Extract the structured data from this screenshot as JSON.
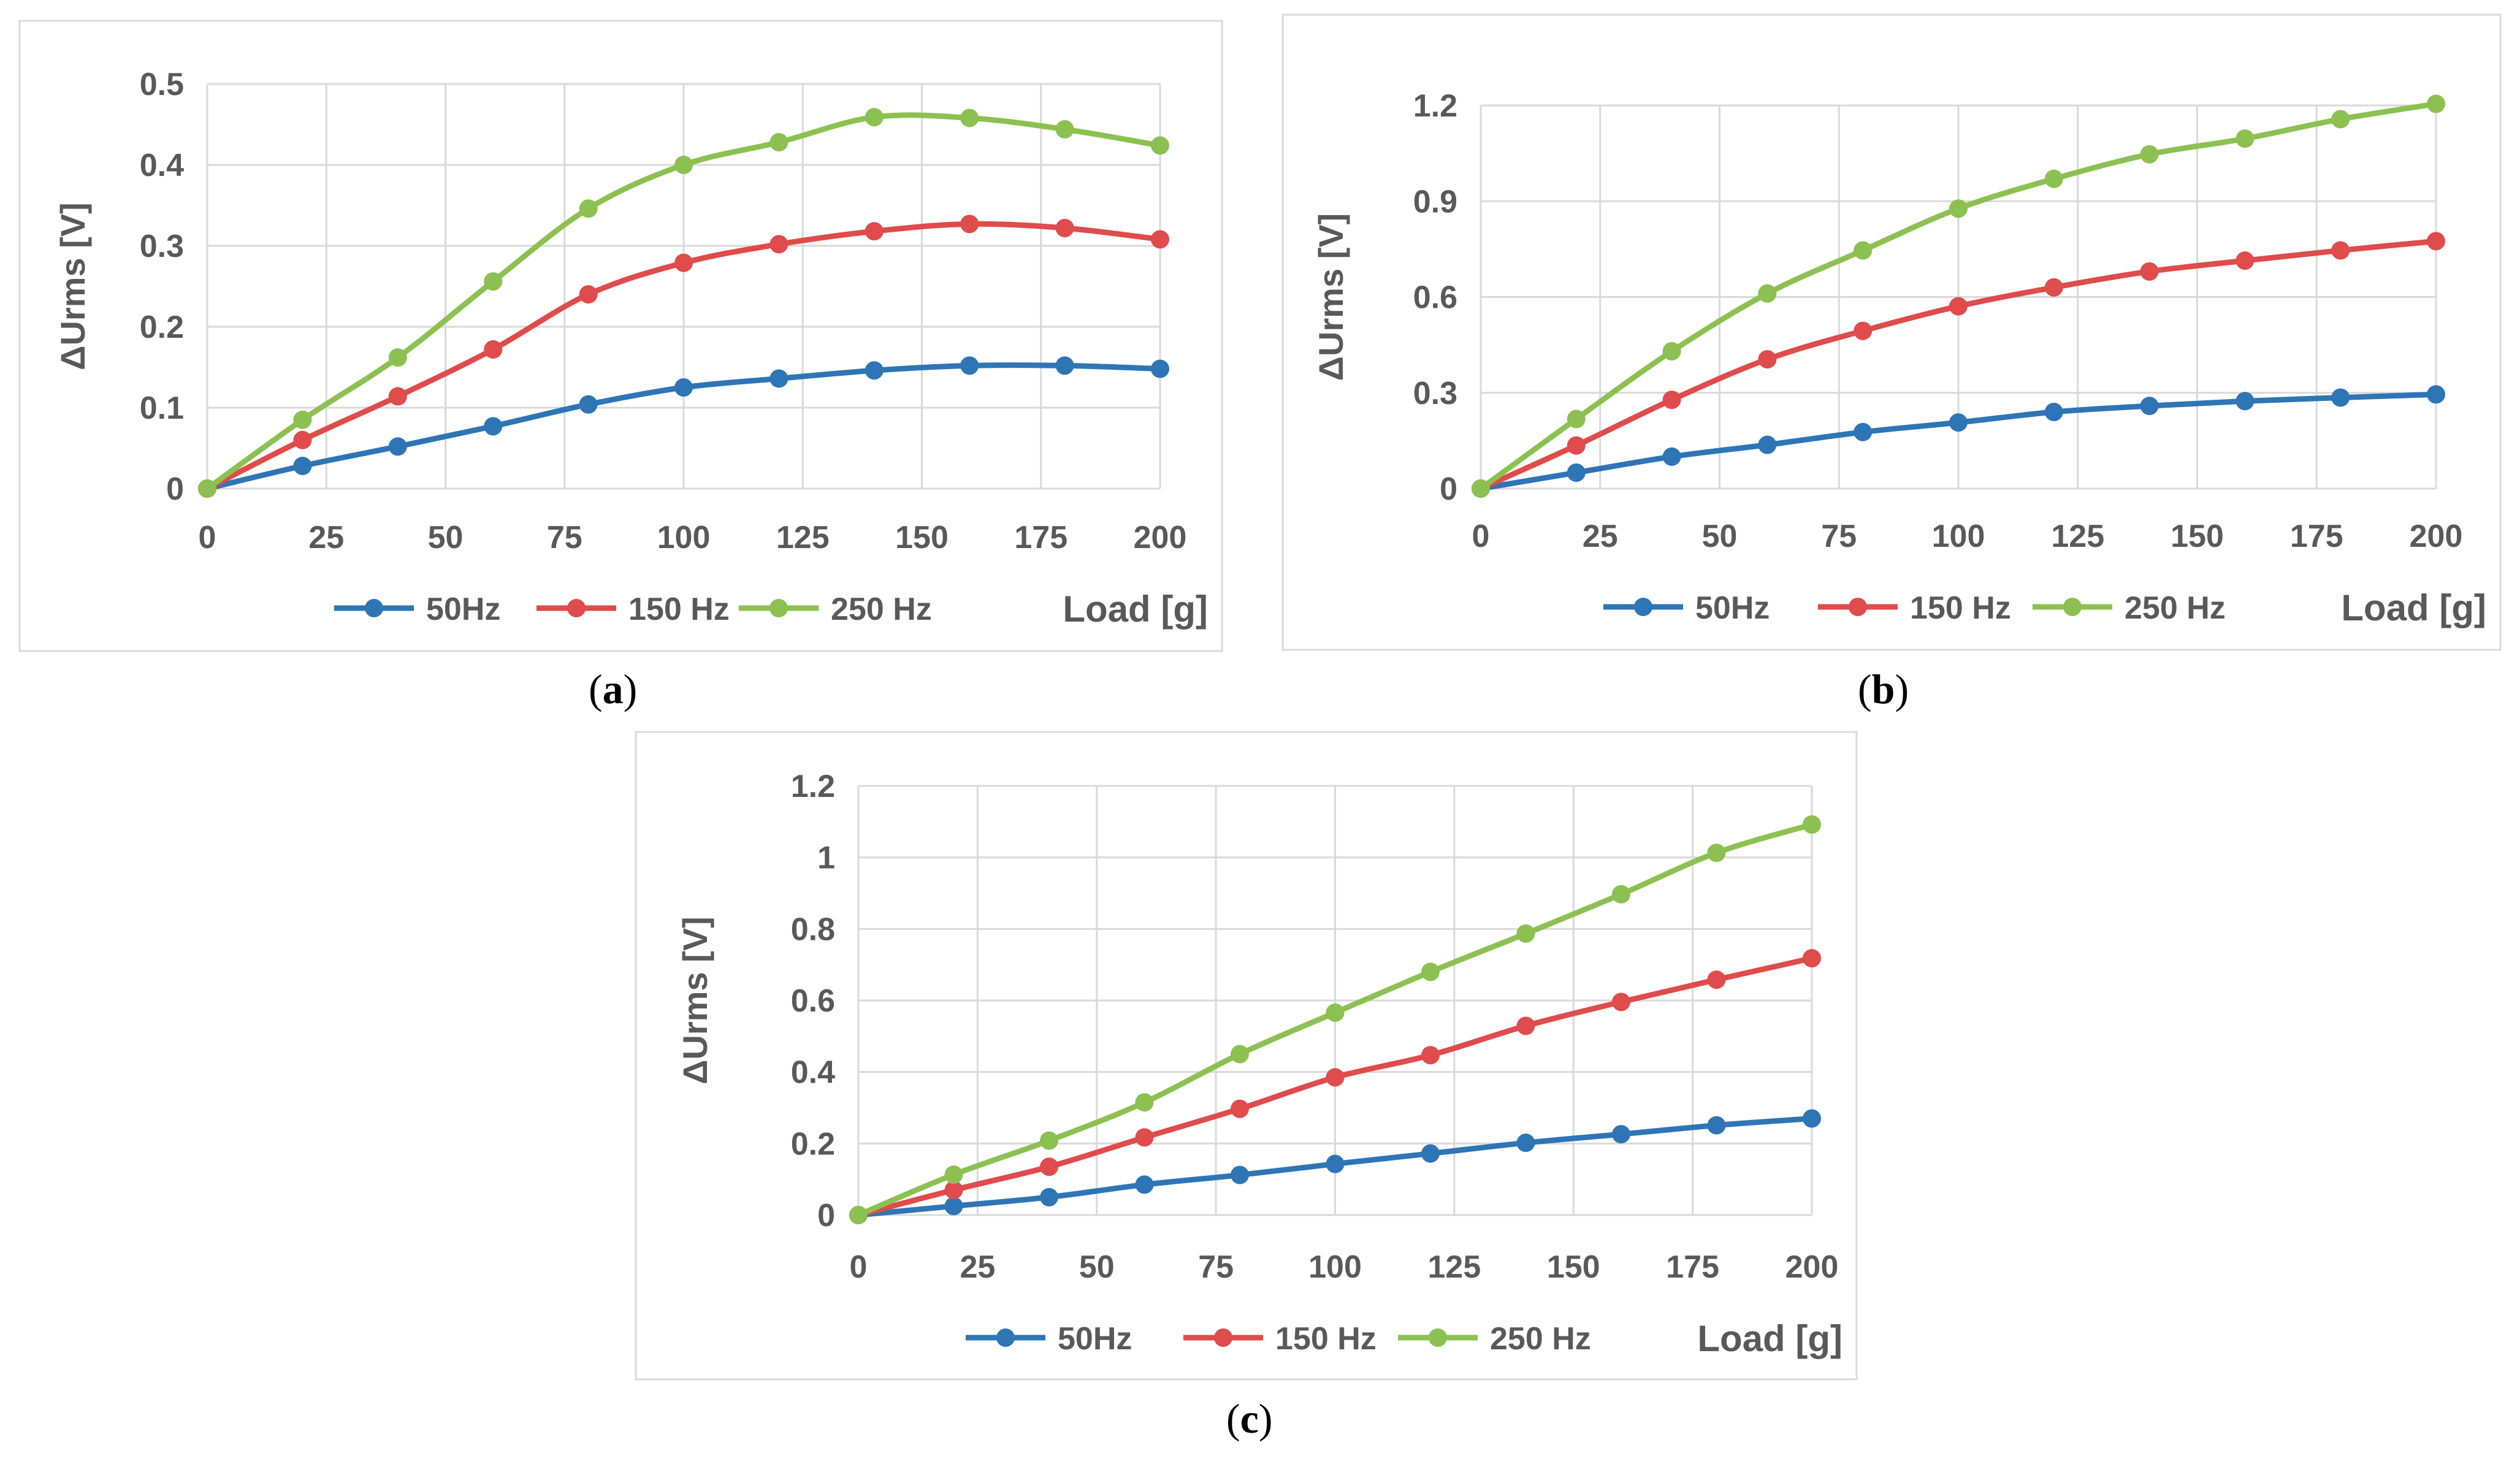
{
  "colors": {
    "50Hz": "#2e75b6",
    "150 Hz": "#e04b4b",
    "250 Hz": "#8cc152"
  },
  "chart_data": [
    {
      "type": "line",
      "caption": "a",
      "ylabel": "ΔUrms [V]",
      "xlabel": "Load [g]",
      "xlim": [
        0,
        200
      ],
      "ylim": [
        0,
        0.5
      ],
      "xticks": [
        0,
        25,
        50,
        75,
        100,
        125,
        150,
        175,
        200
      ],
      "yticks": [
        0,
        0.1,
        0.2,
        0.3,
        0.4,
        0.5
      ],
      "ytick_labels": [
        "0",
        "0.1",
        "0.2",
        "0.3",
        "0.4",
        "0.5"
      ],
      "grid": true,
      "legend": "bottom",
      "x": [
        0,
        20,
        40,
        60,
        80,
        100,
        120,
        140,
        160,
        180,
        200
      ],
      "series": [
        {
          "name": "50Hz",
          "values": [
            0,
            0.028,
            0.052,
            0.077,
            0.104,
            0.125,
            0.136,
            0.146,
            0.152,
            0.152,
            0.148
          ]
        },
        {
          "name": "150 Hz",
          "values": [
            0,
            0.06,
            0.114,
            0.172,
            0.24,
            0.279,
            0.302,
            0.318,
            0.327,
            0.322,
            0.308
          ]
        },
        {
          "name": "250 Hz",
          "values": [
            0,
            0.085,
            0.162,
            0.256,
            0.346,
            0.4,
            0.428,
            0.459,
            0.458,
            0.444,
            0.424
          ]
        }
      ]
    },
    {
      "type": "line",
      "caption": "b",
      "ylabel": "ΔUrms [V]",
      "xlabel": "Load [g]",
      "xlim": [
        0,
        200
      ],
      "ylim": [
        0,
        1.2
      ],
      "xticks": [
        0,
        25,
        50,
        75,
        100,
        125,
        150,
        175,
        200
      ],
      "yticks": [
        0,
        0.3,
        0.6,
        0.9,
        1.2
      ],
      "ytick_labels": [
        "0",
        "0.3",
        "0.6",
        "0.9",
        "1.2"
      ],
      "grid": true,
      "legend": "bottom",
      "x": [
        0,
        20,
        40,
        60,
        80,
        100,
        120,
        140,
        160,
        180,
        200
      ],
      "series": [
        {
          "name": "50Hz",
          "values": [
            0,
            0.05,
            0.1,
            0.137,
            0.177,
            0.207,
            0.24,
            0.259,
            0.274,
            0.285,
            0.295
          ]
        },
        {
          "name": "150 Hz",
          "values": [
            0,
            0.135,
            0.278,
            0.405,
            0.494,
            0.571,
            0.63,
            0.68,
            0.714,
            0.746,
            0.775
          ]
        },
        {
          "name": "250 Hz",
          "values": [
            0,
            0.218,
            0.43,
            0.611,
            0.746,
            0.877,
            0.97,
            1.047,
            1.096,
            1.157,
            1.205
          ]
        }
      ]
    },
    {
      "type": "line",
      "caption": "c",
      "ylabel": "ΔUrms [V]",
      "xlabel": "Load [g]",
      "xlim": [
        0,
        200
      ],
      "ylim": [
        0,
        1.2
      ],
      "xticks": [
        0,
        25,
        50,
        75,
        100,
        125,
        150,
        175,
        200
      ],
      "yticks": [
        0,
        0.2,
        0.4,
        0.6,
        0.8,
        1,
        1.2
      ],
      "ytick_labels": [
        "0",
        "0.2",
        "0.4",
        "0.6",
        "0.8",
        "1",
        "1.2"
      ],
      "grid": true,
      "legend": "bottom",
      "x": [
        0,
        20,
        40,
        60,
        80,
        100,
        120,
        140,
        160,
        180,
        200
      ],
      "series": [
        {
          "name": "50Hz",
          "values": [
            0,
            0.025,
            0.05,
            0.085,
            0.112,
            0.143,
            0.172,
            0.202,
            0.226,
            0.251,
            0.27
          ]
        },
        {
          "name": "150 Hz",
          "values": [
            0,
            0.07,
            0.135,
            0.217,
            0.297,
            0.385,
            0.447,
            0.529,
            0.596,
            0.658,
            0.718
          ]
        },
        {
          "name": "250 Hz",
          "values": [
            0,
            0.113,
            0.208,
            0.315,
            0.45,
            0.566,
            0.68,
            0.787,
            0.897,
            1.013,
            1.092
          ]
        }
      ]
    }
  ]
}
